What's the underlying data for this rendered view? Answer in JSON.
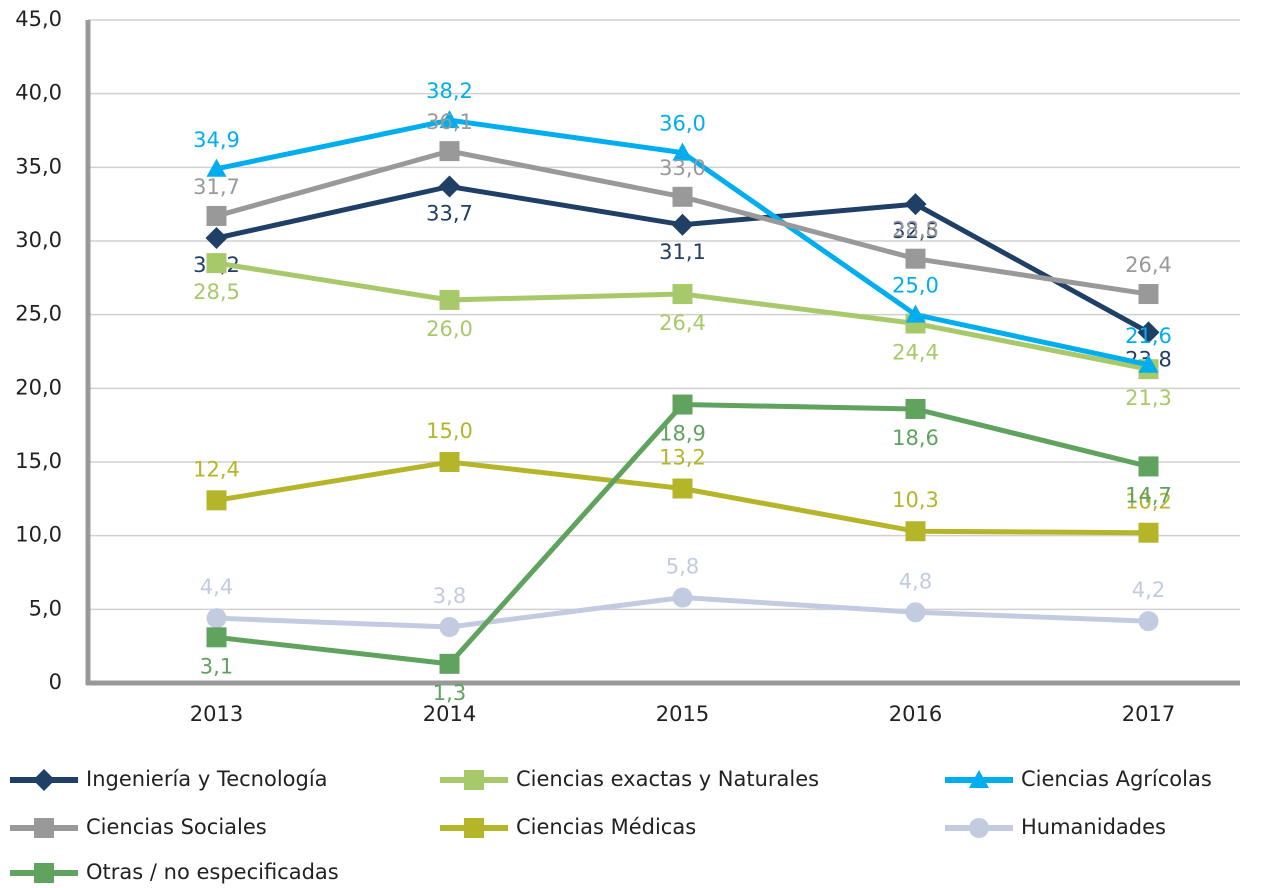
{
  "chart_data": {
    "type": "line",
    "categories": [
      "2013",
      "2014",
      "2015",
      "2016",
      "2017"
    ],
    "ylim": [
      0,
      45
    ],
    "yticks": [
      0,
      {
        "value": 5,
        "label": "5,0"
      },
      {
        "value": 10,
        "label": "10,0"
      },
      {
        "value": 15,
        "label": "15,0"
      },
      {
        "value": 20,
        "label": "20,0"
      },
      {
        "value": 25,
        "label": "25,0"
      },
      {
        "value": 30,
        "label": "30,0"
      },
      {
        "value": 35,
        "label": "35,0"
      },
      {
        "value": 40,
        "label": "40,0"
      },
      {
        "value": 45,
        "label": "45,0"
      }
    ],
    "grid": true,
    "series": [
      {
        "name": "Ingeniería y Tecnología",
        "color": "#1f3f66",
        "marker": "diamond",
        "values": [
          30.2,
          33.7,
          31.1,
          32.5,
          23.8
        ],
        "value_labels": [
          "30,2",
          "33,7",
          "31,1",
          "32,5",
          "23,8"
        ]
      },
      {
        "name": "Ciencias exactas y Naturales",
        "color": "#a8c96a",
        "marker": "square",
        "values": [
          28.5,
          26.0,
          26.4,
          24.4,
          21.3
        ],
        "value_labels": [
          "28,5",
          "26,0",
          "26,4",
          "24,4",
          "21,3"
        ]
      },
      {
        "name": "Ciencias Agrícolas",
        "color": "#00aeef",
        "marker": "triangle",
        "values": [
          34.9,
          38.2,
          36.0,
          25.0,
          21.6
        ],
        "value_labels": [
          "34,9",
          "38,2",
          "36,0",
          "25,0",
          "21,6"
        ]
      },
      {
        "name": "Ciencias Sociales",
        "color": "#999999",
        "marker": "square",
        "values": [
          31.7,
          36.1,
          33.0,
          28.8,
          26.4
        ],
        "value_labels": [
          "31,7",
          "36,1",
          "33,0",
          "28,8",
          "26,4"
        ]
      },
      {
        "name": "Ciencias Médicas",
        "color": "#b5b52a",
        "marker": "square",
        "values": [
          12.4,
          15.0,
          13.2,
          10.3,
          10.2
        ],
        "value_labels": [
          "12,4",
          "15,0",
          "13,2",
          "10,3",
          "10,2"
        ]
      },
      {
        "name": "Humanidades",
        "color": "#c3cbe0",
        "marker": "circle",
        "values": [
          4.4,
          3.8,
          5.8,
          4.8,
          4.2
        ],
        "value_labels": [
          "4,4",
          "3,8",
          "5,8",
          "4,8",
          "4,2"
        ]
      },
      {
        "name": "Otras / no especificadas",
        "color": "#5fa35f",
        "marker": "square",
        "values": [
          3.1,
          1.3,
          18.9,
          18.6,
          14.7
        ],
        "value_labels": [
          "3,1",
          "1,3",
          "18,9",
          "18,6",
          "14,7"
        ]
      }
    ]
  }
}
